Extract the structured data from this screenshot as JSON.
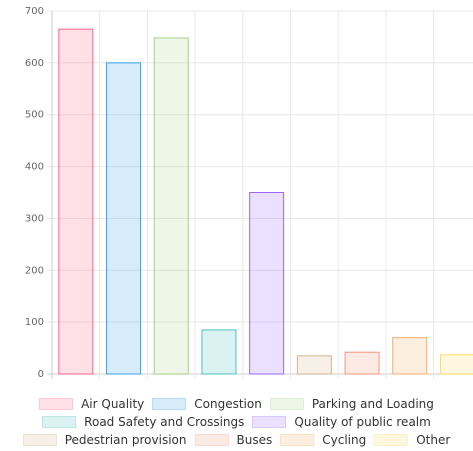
{
  "chart_data": {
    "type": "bar",
    "series": [
      {
        "name": "Air Quality",
        "color": "#ff6384",
        "values": [
          665
        ]
      },
      {
        "name": "Congestion",
        "color": "#36a2eb",
        "values": [
          600
        ]
      },
      {
        "name": "Parking and Loading",
        "color": "#a6d185",
        "values": [
          648
        ]
      },
      {
        "name": "Road Safety and Crossings",
        "color": "#4bc0c0",
        "values": [
          85
        ]
      },
      {
        "name": "Quality of public realm",
        "color": "#9966ff",
        "values": [
          350
        ]
      },
      {
        "name": "Pedestrian provision",
        "color": "#d2b48c",
        "values": [
          35
        ]
      },
      {
        "name": "Buses",
        "color": "#f7967a",
        "values": [
          42
        ]
      },
      {
        "name": "Cycling",
        "color": "#f5ad66",
        "values": [
          70
        ]
      },
      {
        "name": "Other",
        "color": "#ffd966",
        "values": [
          37
        ]
      }
    ],
    "ylim": [
      0,
      700
    ],
    "yticks": [
      0,
      100,
      200,
      300,
      400,
      500,
      600,
      700
    ],
    "grid": true
  }
}
